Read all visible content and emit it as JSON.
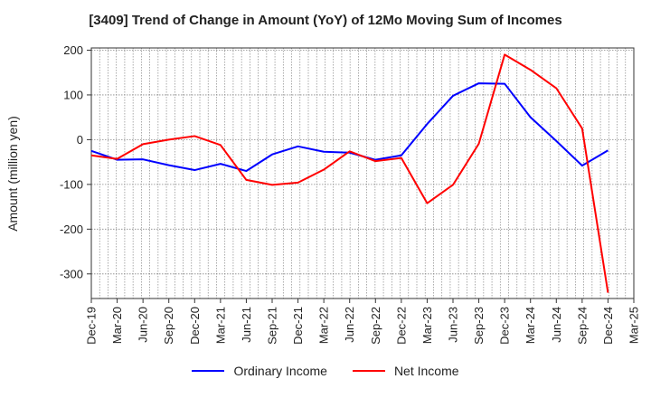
{
  "chart_data": {
    "type": "line",
    "title": "[3409]  Trend of Change in Amount (YoY) of 12Mo Moving Sum of Incomes",
    "xlabel": "",
    "ylabel": "Amount (million yen)",
    "ylim": [
      -355,
      205
    ],
    "yticks": [
      200,
      100,
      0,
      -100,
      -200,
      -300
    ],
    "categories": [
      "Dec-19",
      "Mar-20",
      "Jun-20",
      "Sep-20",
      "Dec-20",
      "Mar-21",
      "Jun-21",
      "Sep-21",
      "Dec-21",
      "Mar-22",
      "Jun-22",
      "Sep-22",
      "Dec-22",
      "Mar-23",
      "Jun-23",
      "Sep-23",
      "Dec-23",
      "Mar-24",
      "Jun-24",
      "Sep-24",
      "Dec-24",
      "Mar-25"
    ],
    "grid": true,
    "legend_position": "bottom",
    "series": [
      {
        "name": "Ordinary Income",
        "color": "#0000ff",
        "values": [
          -25,
          -45,
          -44,
          -57,
          -68,
          -54,
          -70,
          -33,
          -15,
          -27,
          -29,
          -45,
          -35,
          35,
          98,
          126,
          125,
          50,
          -3,
          -58,
          -24,
          null
        ]
      },
      {
        "name": "Net Income",
        "color": "#ff0000",
        "values": [
          -35,
          -43,
          -10,
          0,
          8,
          -12,
          -90,
          -101,
          -96,
          -67,
          -26,
          -48,
          -41,
          -142,
          -101,
          -9,
          190,
          156,
          115,
          25,
          -342,
          null
        ]
      }
    ]
  }
}
